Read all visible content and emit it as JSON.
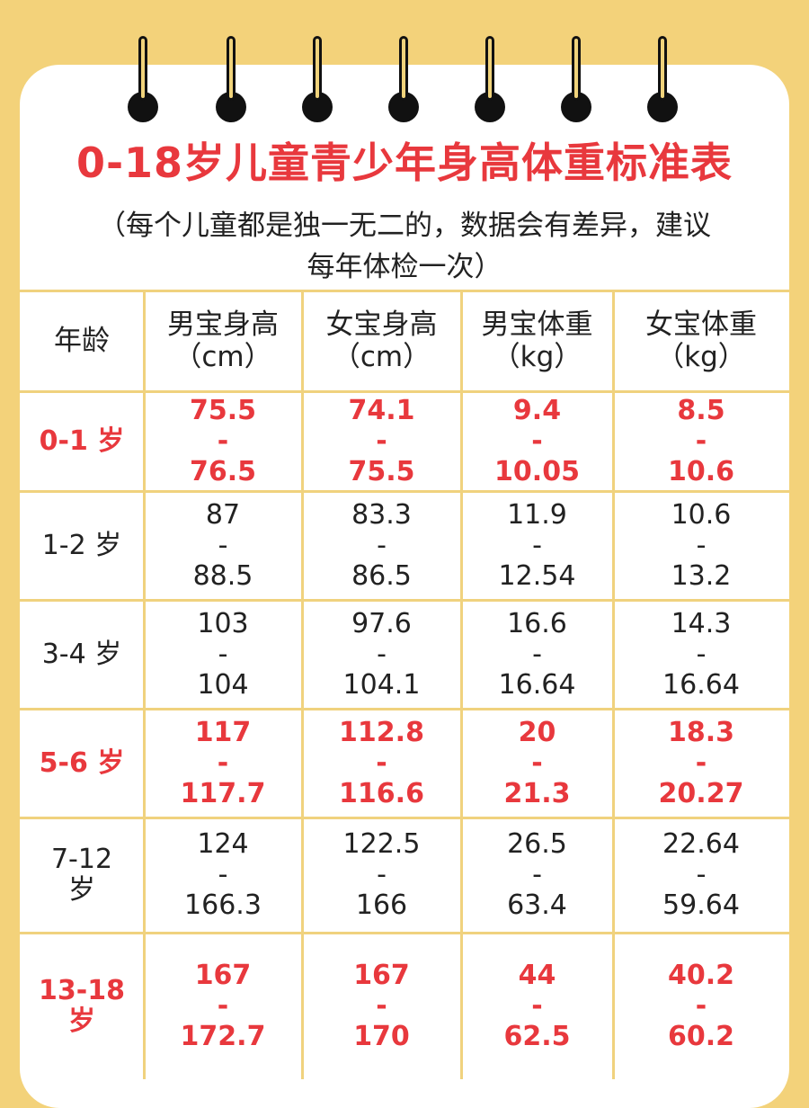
{
  "title": "0-18岁儿童青少年身高体重标准表",
  "subtitle_line1": "（每个儿童都是独一无二的，数据会有差异，建议",
  "subtitle_line2": "每年体检一次）",
  "headers": {
    "age": "年龄",
    "boy_height": [
      "男宝身高",
      "（cm）"
    ],
    "girl_height": [
      "女宝身高",
      "（cm）"
    ],
    "boy_weight": [
      "男宝体重",
      "（kg）"
    ],
    "girl_weight": [
      "女宝体重",
      "（kg）"
    ]
  },
  "rows": [
    {
      "age": "0-1 岁",
      "highlight": true,
      "boy_height": [
        "75.5",
        "-",
        "76.5"
      ],
      "girl_height": [
        "74.1",
        "-",
        "75.5"
      ],
      "boy_weight": [
        "9.4",
        "-",
        "10.05"
      ],
      "girl_weight": [
        "8.5",
        "-",
        "10.6"
      ]
    },
    {
      "age": "1-2 岁",
      "highlight": false,
      "boy_height": [
        "87",
        "-",
        "88.5"
      ],
      "girl_height": [
        "83.3",
        "-",
        "86.5"
      ],
      "boy_weight": [
        "11.9",
        "-",
        "12.54"
      ],
      "girl_weight": [
        "10.6",
        "-",
        "13.2"
      ]
    },
    {
      "age": "3-4 岁",
      "highlight": false,
      "boy_height": [
        "103",
        "-",
        "104"
      ],
      "girl_height": [
        "97.6",
        "-",
        "104.1"
      ],
      "boy_weight": [
        "16.6",
        "-",
        "16.64"
      ],
      "girl_weight": [
        "14.3",
        "-",
        "16.64"
      ]
    },
    {
      "age": "5-6 岁",
      "highlight": true,
      "boy_height": [
        "117",
        "-",
        "117.7"
      ],
      "girl_height": [
        "112.8",
        "-",
        "116.6"
      ],
      "boy_weight": [
        "20",
        "-",
        "21.3"
      ],
      "girl_weight": [
        "18.3",
        "-",
        "20.27"
      ]
    },
    {
      "age": "7-12 岁",
      "age_lines": [
        "7-12",
        "岁"
      ],
      "highlight": false,
      "boy_height": [
        "124",
        "-",
        "166.3"
      ],
      "girl_height": [
        "122.5",
        "-",
        "166"
      ],
      "boy_weight": [
        "26.5",
        "-",
        "63.4"
      ],
      "girl_weight": [
        "22.64",
        "-",
        "59.64"
      ]
    },
    {
      "age": "13-18 岁",
      "age_lines": [
        "13-18",
        "岁"
      ],
      "highlight": true,
      "boy_height": [
        "167",
        "-",
        "172.7"
      ],
      "girl_height": [
        "167",
        "-",
        "170"
      ],
      "boy_weight": [
        "44",
        "-",
        "62.5"
      ],
      "girl_weight": [
        "40.2",
        "-",
        "60.2"
      ]
    }
  ],
  "colors": {
    "background": "#f3d27a",
    "card": "#ffffff",
    "accent_red": "#e8383d",
    "grid": "#f0d27e",
    "text": "#222222"
  },
  "icons": [
    "binder-ring-icon"
  ]
}
